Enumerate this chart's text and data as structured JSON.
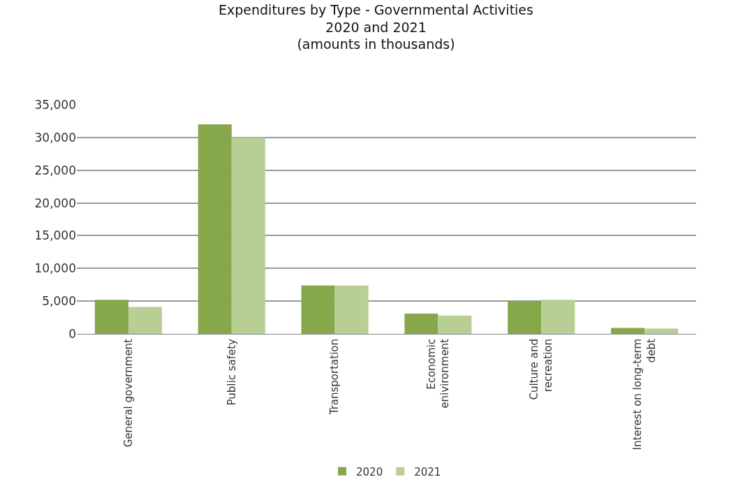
{
  "chart_data": {
    "type": "bar",
    "title": "Expenditures by Type - Governmental Activities\n2020 and 2021\n(amounts in thousands)",
    "categories": [
      "General government",
      "Public safety",
      "Transportation",
      "Economic\nenivironment",
      "Culture and\nrecreation",
      "Interest on long-term\ndebt"
    ],
    "series": [
      {
        "name": "2020",
        "color": "#86a84a",
        "values": [
          5200,
          32000,
          7400,
          3100,
          5000,
          900
        ]
      },
      {
        "name": "2021",
        "color": "#b7cf94",
        "values": [
          4100,
          30000,
          7400,
          2800,
          5200,
          800
        ]
      }
    ],
    "ylim": [
      0,
      35000
    ],
    "yticks": [
      {
        "value": 0,
        "label": "0"
      },
      {
        "value": 5000,
        "label": "5,000"
      },
      {
        "value": 10000,
        "label": "10,000"
      },
      {
        "value": 15000,
        "label": "15,000"
      },
      {
        "value": 20000,
        "label": "20,000"
      },
      {
        "value": 25000,
        "label": "25,000"
      },
      {
        "value": 30000,
        "label": "30,000"
      },
      {
        "value": 35000,
        "label": "35,000"
      }
    ],
    "grid": "y",
    "legend": "bottom"
  }
}
